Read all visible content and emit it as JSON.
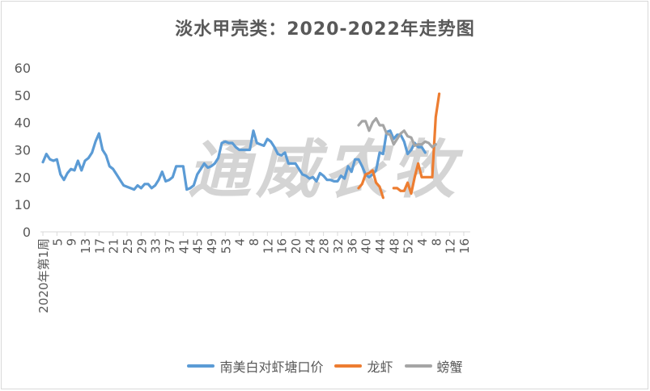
{
  "chart_data": {
    "type": "line",
    "title": "淡水甲壳类：2020-2022年走势图",
    "watermark": "通威农牧",
    "ylim": [
      0,
      60
    ],
    "yticks": [
      0,
      10,
      20,
      30,
      40,
      50,
      60
    ],
    "x_first_label": "2020年第1周",
    "x_tick_labels": [
      "2020年第1周",
      "5",
      "9",
      "13",
      "17",
      "21",
      "25",
      "29",
      "33",
      "37",
      "41",
      "45",
      "49",
      "53",
      "4",
      "8",
      "12",
      "16",
      "20",
      "24",
      "28",
      "32",
      "36",
      "40",
      "44",
      "48",
      "52",
      "4",
      "8",
      "12",
      "16"
    ],
    "grid": false,
    "legend_position": "bottom",
    "series": [
      {
        "name": "南美白对虾塘口价",
        "color": "#5b9bd5",
        "values": [
          25.5,
          28.5,
          26.5,
          26,
          26.5,
          21,
          19,
          21.5,
          23,
          22.5,
          26,
          22.5,
          26,
          27,
          29,
          33,
          36,
          30,
          28,
          24,
          23,
          21,
          19,
          17,
          16.5,
          16,
          15.5,
          17,
          16,
          17.5,
          17.5,
          16,
          17,
          19,
          22,
          18.5,
          19,
          20,
          24,
          24,
          24,
          15.5,
          16,
          17,
          21,
          23,
          25,
          23.5,
          24,
          25,
          27,
          32.5,
          33,
          32.5,
          32.5,
          31,
          30,
          30,
          30,
          30,
          37,
          32.5,
          32,
          31.5,
          34,
          33,
          31,
          28.5,
          28,
          29,
          25,
          25,
          25,
          23,
          21,
          20.5,
          19.5,
          20,
          18.5,
          21.5,
          20.5,
          19,
          19,
          18.5,
          18.5,
          20.5,
          19.5,
          24,
          22,
          26.5,
          26.5,
          24,
          21,
          20,
          21,
          22.5,
          29,
          28.5,
          36.5,
          37,
          34,
          35.5,
          35.5,
          33,
          28.5,
          30,
          32.5,
          31,
          31,
          29
        ],
        "start_index": 0
      },
      {
        "name": "龙虾",
        "color": "#ed7d31",
        "segments": [
          {
            "start_index": 90,
            "values": [
              16,
              17.5,
              21,
              21.5,
              22.5,
              18,
              16.5,
              12.5
            ]
          },
          {
            "start_index": 100,
            "values": [
              16,
              16,
              15,
              15,
              18,
              14,
              20,
              25,
              20,
              20,
              20,
              20,
              42,
              50.5
            ]
          }
        ]
      },
      {
        "name": "螃蟹",
        "color": "#a5a5a5",
        "segments": [
          {
            "start_index": 90,
            "values": [
              39,
              40.5,
              40.5,
              37,
              40,
              41.5,
              39,
              39,
              36,
              35.5,
              32,
              34,
              36,
              37,
              35,
              34.5,
              31.5,
              32,
              32,
              33,
              32.5,
              31,
              32
            ]
          }
        ]
      }
    ]
  }
}
